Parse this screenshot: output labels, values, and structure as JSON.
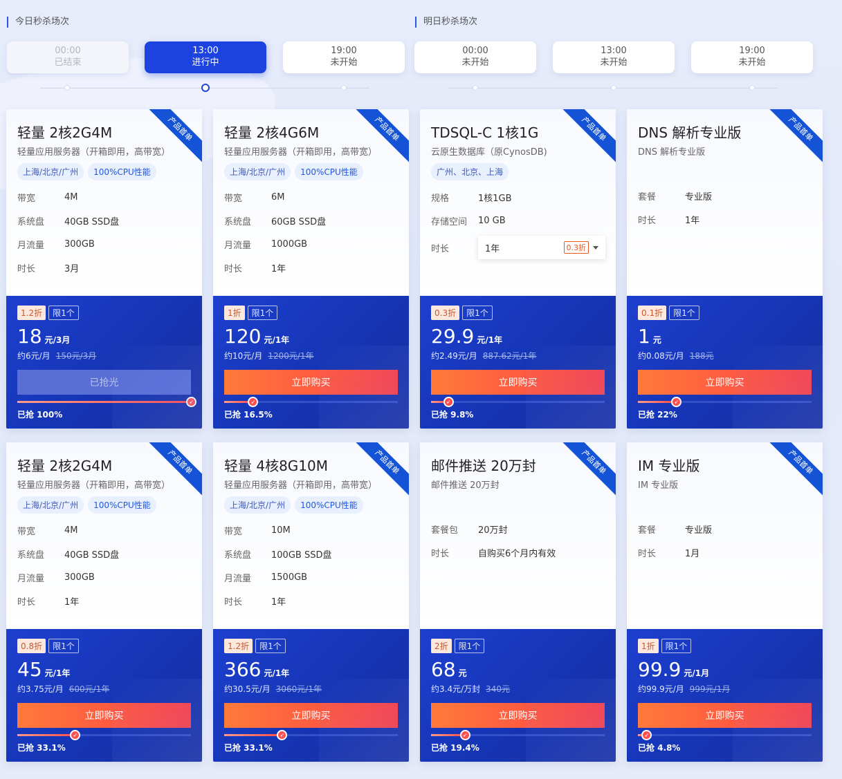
{
  "sections": {
    "today": "今日秒杀场次",
    "tomorrow": "明日秒杀场次"
  },
  "slots": [
    {
      "time": "00:00",
      "status": "已结束"
    },
    {
      "time": "13:00",
      "status": "进行中"
    },
    {
      "time": "19:00",
      "status": "未开始"
    },
    {
      "time": "00:00",
      "status": "未开始"
    },
    {
      "time": "13:00",
      "status": "未开始"
    },
    {
      "time": "19:00",
      "status": "未开始"
    }
  ],
  "ribbon": "产品首单",
  "cards": [
    {
      "title": "轻量 2核2G4M",
      "subtitle": "轻量应用服务器（开箱即用，高带宽）",
      "tags": [
        "上海/北京/广州",
        "100%CPU性能"
      ],
      "specs": [
        {
          "k": "带宽",
          "v": "4M"
        },
        {
          "k": "系统盘",
          "v": "40GB SSD盘"
        },
        {
          "k": "月流量",
          "v": "300GB"
        },
        {
          "k": "时长",
          "v": "3月"
        }
      ],
      "discount": "1.2折",
      "limit": "限1个",
      "price": "18",
      "unit": "元/3月",
      "per": "约6元/月",
      "orig": "150元/3月",
      "button": "已抢光",
      "sold_out": true,
      "progress": 100,
      "sold_text": "已抢 100%"
    },
    {
      "title": "轻量 2核4G6M",
      "subtitle": "轻量应用服务器（开箱即用，高带宽）",
      "tags": [
        "上海/北京/广州",
        "100%CPU性能"
      ],
      "specs": [
        {
          "k": "带宽",
          "v": "6M"
        },
        {
          "k": "系统盘",
          "v": "60GB SSD盘"
        },
        {
          "k": "月流量",
          "v": "1000GB"
        },
        {
          "k": "时长",
          "v": "1年"
        }
      ],
      "discount": "1折",
      "limit": "限1个",
      "price": "120",
      "unit": "元/1年",
      "per": "约10元/月",
      "orig": "1200元/1年",
      "button": "立即购买",
      "sold_out": false,
      "progress": 16.5,
      "sold_text": "已抢 16.5%"
    },
    {
      "title": "TDSQL-C 1核1G",
      "subtitle": "云原生数据库（原CynosDB)",
      "tags": [
        "广州、北京、上海"
      ],
      "specs": [
        {
          "k": "规格",
          "v": "1核1GB"
        },
        {
          "k": "存储空间",
          "v": "10 GB"
        }
      ],
      "duration_select": {
        "k": "时长",
        "v": "1年",
        "disc": "0.3折"
      },
      "discount": "0.3折",
      "limit": "限1个",
      "price": "29.9",
      "unit": "元/1年",
      "per": "约2.49元/月",
      "orig": "887.62元/1年",
      "button": "立即购买",
      "sold_out": false,
      "progress": 9.8,
      "sold_text": "已抢 9.8%"
    },
    {
      "title": "DNS 解析专业版",
      "subtitle": "DNS 解析专业版",
      "tags": [],
      "specs": [
        {
          "k": "套餐",
          "v": "专业版"
        },
        {
          "k": "时长",
          "v": "1年"
        }
      ],
      "discount": "0.1折",
      "limit": "限1个",
      "price": "1",
      "unit": "元",
      "per": "约0.08元/月",
      "orig": "188元",
      "button": "立即购买",
      "sold_out": false,
      "progress": 22,
      "sold_text": "已抢 22%"
    },
    {
      "title": "轻量 2核2G4M",
      "subtitle": "轻量应用服务器（开箱即用，高带宽）",
      "tags": [
        "上海/北京/广州",
        "100%CPU性能"
      ],
      "specs": [
        {
          "k": "带宽",
          "v": "4M"
        },
        {
          "k": "系统盘",
          "v": "40GB SSD盘"
        },
        {
          "k": "月流量",
          "v": "300GB"
        },
        {
          "k": "时长",
          "v": "1年"
        }
      ],
      "discount": "0.8折",
      "limit": "限1个",
      "price": "45",
      "unit": "元/1年",
      "per": "约3.75元/月",
      "orig": "600元/1年",
      "button": "立即购买",
      "sold_out": false,
      "progress": 33.1,
      "sold_text": "已抢 33.1%"
    },
    {
      "title": "轻量 4核8G10M",
      "subtitle": "轻量应用服务器（开箱即用，高带宽）",
      "tags": [
        "上海/北京/广州",
        "100%CPU性能"
      ],
      "specs": [
        {
          "k": "带宽",
          "v": "10M"
        },
        {
          "k": "系统盘",
          "v": "100GB SSD盘"
        },
        {
          "k": "月流量",
          "v": "1500GB"
        },
        {
          "k": "时长",
          "v": "1年"
        }
      ],
      "discount": "1.2折",
      "limit": "限1个",
      "price": "366",
      "unit": "元/1年",
      "per": "约30.5元/月",
      "orig": "3060元/1年",
      "button": "立即购买",
      "sold_out": false,
      "progress": 33.1,
      "sold_text": "已抢 33.1%"
    },
    {
      "title": "邮件推送 20万封",
      "subtitle": "邮件推送 20万封",
      "tags": [],
      "specs": [
        {
          "k": "套餐包",
          "v": "20万封"
        },
        {
          "k": "时长",
          "v": "自购买6个月内有效"
        }
      ],
      "discount": "2折",
      "limit": "限1个",
      "price": "68",
      "unit": "元",
      "per": "约3.4元/万封",
      "orig": "340元",
      "button": "立即购买",
      "sold_out": false,
      "progress": 19.4,
      "sold_text": "已抢 19.4%"
    },
    {
      "title": "IM 专业版",
      "subtitle": "IM 专业版",
      "tags": [],
      "specs": [
        {
          "k": "套餐",
          "v": "专业版"
        },
        {
          "k": "时长",
          "v": "1月"
        }
      ],
      "discount": "1折",
      "limit": "限1个",
      "price": "99.9",
      "unit": "元/1月",
      "per": "约99.9元/月",
      "orig": "999元/1月",
      "button": "立即购买",
      "sold_out": false,
      "progress": 4.8,
      "sold_text": "已抢 4.8%"
    }
  ]
}
